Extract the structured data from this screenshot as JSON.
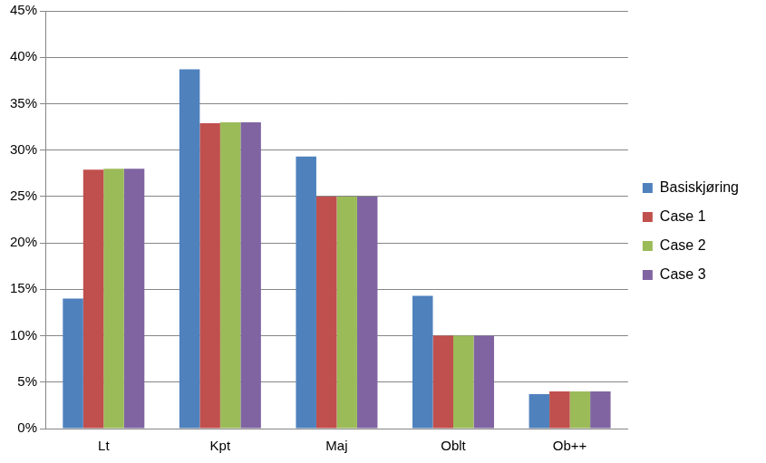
{
  "chart_data": {
    "type": "bar",
    "categories": [
      "Lt",
      "Kpt",
      "Maj",
      "Oblt",
      "Ob++"
    ],
    "series": [
      {
        "name": "Basiskjøring",
        "color": "#4f81bd",
        "values": [
          14,
          38.7,
          29.3,
          14.3,
          3.7
        ]
      },
      {
        "name": "Case 1",
        "color": "#c0504d",
        "values": [
          27.9,
          32.9,
          25,
          10,
          4
        ]
      },
      {
        "name": "Case 2",
        "color": "#9bbb59",
        "values": [
          28,
          33,
          25,
          10,
          4
        ]
      },
      {
        "name": "Case 3",
        "color": "#8064a2",
        "values": [
          28,
          33,
          25,
          10,
          4
        ]
      }
    ],
    "ylim": [
      0,
      45
    ],
    "yticks": [
      {
        "value": 0,
        "label": "0%"
      },
      {
        "value": 5,
        "label": "5%"
      },
      {
        "value": 10,
        "label": "10%"
      },
      {
        "value": 15,
        "label": "15%"
      },
      {
        "value": 20,
        "label": "20%"
      },
      {
        "value": 25,
        "label": "25%"
      },
      {
        "value": 30,
        "label": "30%"
      },
      {
        "value": 35,
        "label": "35%"
      },
      {
        "value": 40,
        "label": "40%"
      },
      {
        "value": 45,
        "label": "45%"
      }
    ],
    "grid": true,
    "legend": "right"
  }
}
